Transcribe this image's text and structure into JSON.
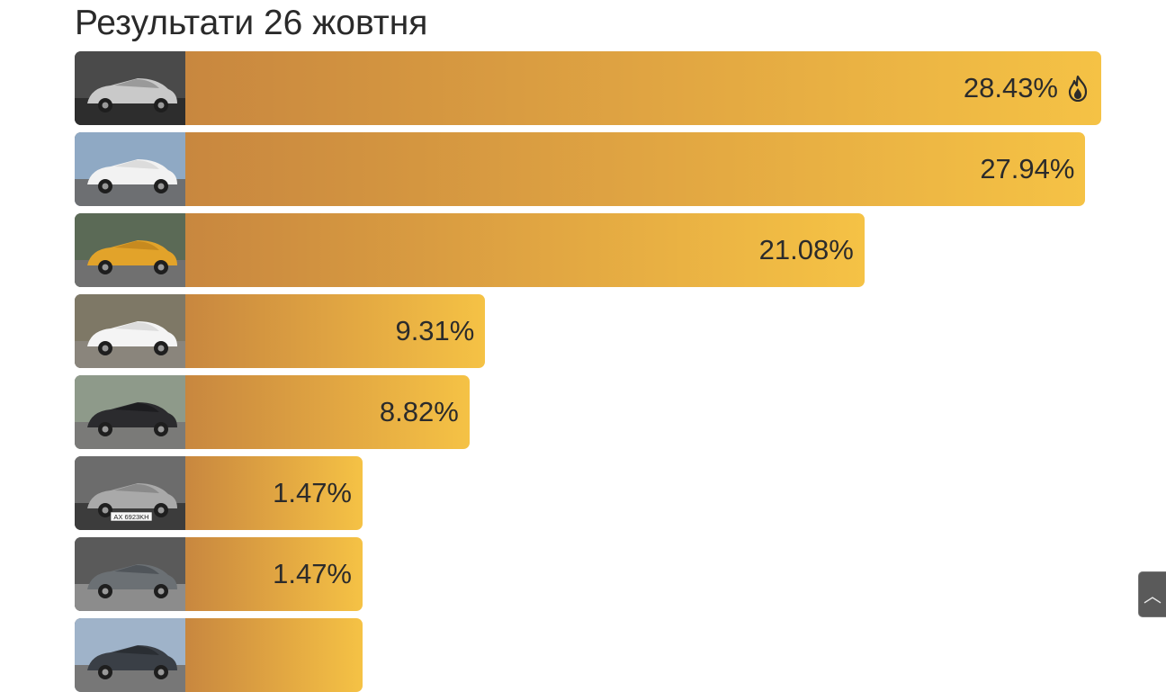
{
  "title": "Результати 26 жовтня",
  "chart_data": {
    "type": "bar",
    "orientation": "horizontal",
    "title": "Результати 26 жовтня",
    "values": [
      28.43,
      27.94,
      21.08,
      9.31,
      8.82,
      1.47,
      1.47,
      0.88
    ],
    "labels": [
      "28.43%",
      "27.94%",
      "21.08%",
      "9.31%",
      "8.82%",
      "1.47%",
      "1.47%",
      ""
    ],
    "leader_icon": "fire-icon",
    "thumbnail_icons": [
      "car-photo-silver-coupe",
      "car-photo-white-suv",
      "car-photo-yellow-hatchback",
      "car-photo-white-sedan",
      "car-photo-black-crossover",
      "car-photo-silver-hatchback",
      "car-photo-grey-crossover",
      "car-photo-dark-car"
    ],
    "plate_text": "AX 6923KH",
    "colors": {
      "gradient_start": "#c8873f",
      "gradient_end": "#f5c245"
    }
  },
  "scroll_top": {
    "icon": "chevron-up-icon",
    "glyph": "︿"
  }
}
